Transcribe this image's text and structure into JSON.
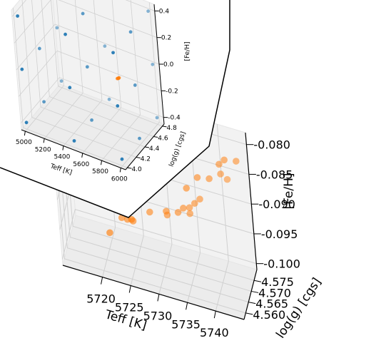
{
  "chart_data": [
    {
      "type": "scatter",
      "projection": "3d",
      "title": "",
      "xlabel": "Teff [K]",
      "ylabel": "log(g) [cgs]",
      "zlabel": "[Fe/H]",
      "xlim": [
        5713,
        5745
      ],
      "ylim": [
        4.557,
        4.58
      ],
      "zlim": [
        -0.101,
        -0.078
      ],
      "xticks": [
        "5720",
        "5725",
        "5730",
        "5735",
        "5740"
      ],
      "yticks": [
        "4.560",
        "4.565",
        "4.570",
        "4.575"
      ],
      "zticks": [
        "-0.080",
        "-0.085",
        "-0.090",
        "-0.095",
        "-0.100"
      ],
      "grid": true,
      "series": [
        {
          "color": "#ff7f0e",
          "points": [
            [
              5720,
              4.572,
              -0.099
            ],
            [
              5722,
              4.575,
              -0.097
            ],
            [
              5723,
              4.575,
              -0.097
            ],
            [
              5724,
              4.575,
              -0.097
            ],
            [
              5724,
              4.573,
              -0.096
            ],
            [
              5727,
              4.576,
              -0.095
            ],
            [
              5730,
              4.577,
              -0.095
            ],
            [
              5730,
              4.576,
              -0.094
            ],
            [
              5732,
              4.577,
              -0.094
            ],
            [
              5733,
              4.577,
              -0.093
            ],
            [
              5734,
              4.578,
              -0.094
            ],
            [
              5734,
              4.578,
              -0.093
            ],
            [
              5735,
              4.578,
              -0.092
            ],
            [
              5736,
              4.578,
              -0.091
            ],
            [
              5734,
              4.576,
              -0.089
            ],
            [
              5736,
              4.577,
              -0.087
            ],
            [
              5738,
              4.578,
              -0.087
            ],
            [
              5740,
              4.579,
              -0.086
            ],
            [
              5741,
              4.58,
              -0.087
            ],
            [
              5743,
              4.579,
              -0.083
            ],
            [
              5741,
              4.578,
              -0.083
            ],
            [
              5740,
              4.578,
              -0.084
            ]
          ]
        }
      ]
    },
    {
      "type": "scatter",
      "projection": "3d",
      "inset": true,
      "title": "",
      "xlabel": "Teff [K]",
      "ylabel": "log(g) [cgs]",
      "zlabel": "[Fe/H]",
      "xlim": [
        4960,
        6050
      ],
      "ylim": [
        3.96,
        4.84
      ],
      "zlim": [
        -0.45,
        0.45
      ],
      "xticks": [
        "5000",
        "5200",
        "5400",
        "5600",
        "5800",
        "6000"
      ],
      "yticks": [
        "4.0",
        "4.2",
        "4.4",
        "4.6",
        "4.8"
      ],
      "zticks": [
        "0.4",
        "0.2",
        "0.0",
        "-0.2",
        "-0.4"
      ],
      "grid": true,
      "series": [
        {
          "color": "#1f77b4",
          "points": [
            [
              5000,
              4.0,
              -0.4
            ],
            [
              5500,
              4.0,
              -0.4
            ],
            [
              6000,
              4.0,
              -0.4
            ],
            [
              5000,
              4.4,
              -0.4
            ],
            [
              5500,
              4.4,
              -0.4
            ],
            [
              6000,
              4.4,
              -0.4
            ],
            [
              5000,
              4.8,
              -0.4
            ],
            [
              5500,
              4.8,
              -0.4
            ],
            [
              6000,
              4.8,
              -0.4
            ],
            [
              5000,
              4.0,
              0.0
            ],
            [
              5500,
              4.0,
              0.0
            ],
            [
              6000,
              4.0,
              0.0
            ],
            [
              5000,
              4.4,
              0.0
            ],
            [
              5500,
              4.4,
              0.0
            ],
            [
              6000,
              4.4,
              0.0
            ],
            [
              5000,
              4.8,
              0.0
            ],
            [
              5500,
              4.8,
              0.0
            ],
            [
              6000,
              4.8,
              0.0
            ],
            [
              5000,
              4.0,
              0.4
            ],
            [
              5500,
              4.0,
              0.4
            ],
            [
              6000,
              4.0,
              0.4
            ],
            [
              5000,
              4.4,
              0.4
            ],
            [
              5500,
              4.4,
              0.4
            ],
            [
              6000,
              4.4,
              0.4
            ],
            [
              5000,
              4.8,
              0.4
            ],
            [
              5500,
              4.8,
              0.4
            ],
            [
              6000,
              4.8,
              0.4
            ]
          ]
        },
        {
          "color": "#ff7f0e",
          "points": [
            [
              5722,
              4.575,
              -0.095
            ],
            [
              5728,
              4.576,
              -0.093
            ],
            [
              5734,
              4.577,
              -0.091
            ],
            [
              5738,
              4.578,
              -0.088
            ],
            [
              5742,
              4.579,
              -0.085
            ],
            [
              5730,
              4.576,
              -0.092
            ],
            [
              5736,
              4.578,
              -0.089
            ]
          ]
        }
      ]
    }
  ]
}
